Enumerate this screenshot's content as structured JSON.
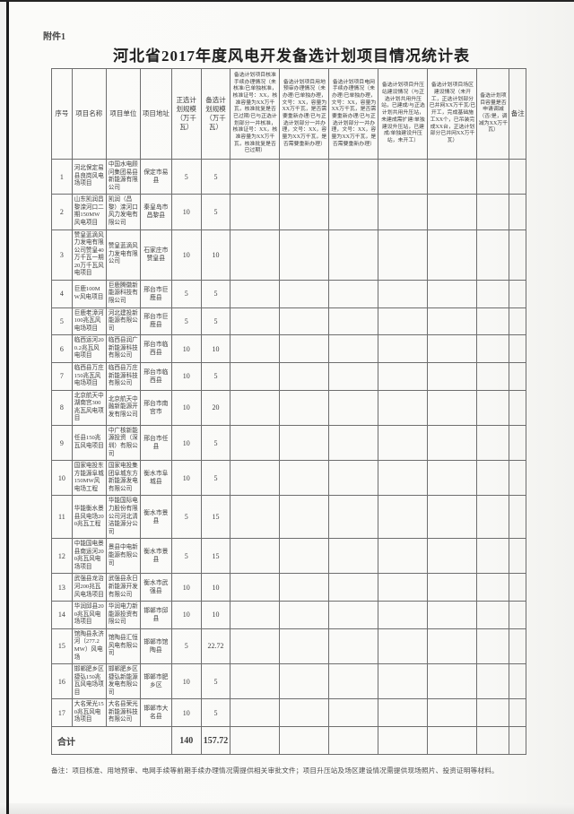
{
  "attachment": "附件1",
  "title": "河北省2017年度风电开发备选计划项目情况统计表",
  "note": "备注：项目核准、用地预审、电网手续等前期手续办理情况需提供相关审批文件；项目升压站及场区建设情况需提供现场照片、投资证明等材料。",
  "colors": {
    "page_bg": "#fafaf8",
    "border": "#6e6e6e",
    "text": "#3d3d3d",
    "scan_edge": "#1b1b1b"
  },
  "table": {
    "headers": [
      "序号",
      "项目名称",
      "项目单位",
      "项目地址",
      "正选计划规模（万千瓦）",
      "备选计划规模（万千瓦）",
      "备选计划项目核准手续办理情况（未核准/已单独核准，核准证号：XX，核准容量为XX万千瓦，核准批复是否已过期/已与正选计划部分一并核准，核准证号：XX，核准容量为XX万千瓦，核准批复是否已过期）",
      "备选计划项目用地预审办理情况（未办理/已单独办理，文号：XX，容量为XX万千瓦，是否需要重新办理/已与正选计划部分一并办理，文号：XX，容量为XX万千瓦，是否需要重新办理）",
      "备选计划项目电网手续办理情况（未办理/已单独办理，文号：XX，容量为XX万千瓦，是否需要重新办理/已与正选计划部分一并办理，文号：XX，容量为XX万千瓦，是否需要重新办理）",
      "备选计划项目升压站建设情况（与正选计划共用升压站，已建成/与正选计划共用升压站，未建成需扩建/单独建设升压站，已建成/单独建设升压站，未开工）",
      "备选计划项目场区建设情况（未开工，正选计划部分已并网XX万千瓦/已开工，完成基础施工XX个，已吊装完成XX台，正选计划部分已并网XX万千瓦）",
      "备选计划项目容量是否申请调减（否/是，调减为XX万千瓦）",
      "备注"
    ],
    "column_widths_pct": [
      4.3,
      7.2,
      7.2,
      6.6,
      6.2,
      6.2,
      10.4,
      10.4,
      10.4,
      10.4,
      10.4,
      6.8,
      3.5
    ],
    "empty_trailing_columns": 7,
    "rows": [
      {
        "seq": "1",
        "name": "河北保定易县良岗风电场项目",
        "unit": "中国水电顾问集团易县新能源有限公司",
        "address": "保定市易县",
        "plan": "5",
        "alt": "5"
      },
      {
        "seq": "2",
        "name": "山东凯润昌黎滦河口二期150MW风电项目",
        "unit": "凯润（昌黎）滦河口风力发电有限公司",
        "address": "秦皇岛市昌黎县",
        "plan": "10",
        "alt": "5"
      },
      {
        "seq": "3",
        "name": "赞皇蓝滴风力发电有限公司赞皇40万千瓦一期20万千瓦风电项目",
        "unit": "赞皇蓝滴风力发电有限公司",
        "address": "石家庄市赞皇县",
        "plan": "10",
        "alt": "10"
      },
      {
        "seq": "4",
        "name": "巨鹿100MW风电项目",
        "unit": "巨鹿腾徽新能源科技有限公司",
        "address": "邢台市巨鹿县",
        "plan": "5",
        "alt": "5"
      },
      {
        "seq": "5",
        "name": "巨鹿老漳河100兆瓦风电场项目",
        "unit": "河北建投新能源有限公司",
        "address": "邢台市巨鹿县",
        "plan": "5",
        "alt": "5"
      },
      {
        "seq": "6",
        "name": "临西运河200.2兆瓦风电项目",
        "unit": "临西县润广新能源科技有限公司",
        "address": "邢台市临西县",
        "plan": "10",
        "alt": "10"
      },
      {
        "seq": "7",
        "name": "临西县万庄150兆瓦风电场项目",
        "unit": "临西县万庄新能源科技有限公司",
        "address": "邢台市临西县",
        "plan": "10",
        "alt": "5"
      },
      {
        "seq": "8",
        "name": "北京航天中湖南宫300兆瓦风电项目",
        "unit": "北京航天中融新能源开发有限公司",
        "address": "邢台市南宫市",
        "plan": "10",
        "alt": "20"
      },
      {
        "seq": "9",
        "name": "任县150兆瓦风电项目",
        "unit": "中广核新能源投资（深圳）有限公司",
        "address": "邢台市任县",
        "plan": "10",
        "alt": "5"
      },
      {
        "seq": "10",
        "name": "国家电投东方能源阜城150MW风电场工程",
        "unit": "国家电投集团阜城东方新能源发电有限公司",
        "address": "衡水市阜城县",
        "plan": "10",
        "alt": "5"
      },
      {
        "seq": "11",
        "name": "华能衡水景县风电场200兆瓦工程",
        "unit": "华能国际电力股份有限公司河北清洁能源分公司",
        "address": "衡水市景县",
        "plan": "5",
        "alt": "15"
      },
      {
        "seq": "12",
        "name": "中能国电景县南运河200兆瓦风电场项目",
        "unit": "景县中电新能源有限公司",
        "address": "衡水市景县",
        "plan": "5",
        "alt": "15"
      },
      {
        "seq": "13",
        "name": "武强县龙治河200兆瓦风电场项目",
        "unit": "武强县永日新能源开发有限公司",
        "address": "衡水市武强县",
        "plan": "10",
        "alt": "10"
      },
      {
        "seq": "14",
        "name": "华润邱县200兆瓦风电场项目",
        "unit": "华润电力新能源投资有限公司",
        "address": "邯郸市邱县",
        "plan": "10",
        "alt": "10"
      },
      {
        "seq": "15",
        "name": "馆陶县永济河（277.2MW）风电场",
        "unit": "馆陶县汇恒风电有限公司",
        "address": "邯郸市馆陶县",
        "plan": "5",
        "alt": "22.72"
      },
      {
        "seq": "16",
        "name": "邯郸肥乡区捷弘150兆瓦风电场项目",
        "unit": "邯郸肥乡区捷弘新能源发电有限公司",
        "address": "邯郸市肥乡区",
        "plan": "10",
        "alt": "5"
      },
      {
        "seq": "17",
        "name": "大名荣光150兆瓦风电场项目",
        "unit": "大名县荣光新能源科技有限公司",
        "address": "邯郸市大名县",
        "plan": "10",
        "alt": "5"
      }
    ],
    "total": {
      "label": "合计",
      "plan": "140",
      "alt": "157.72"
    }
  }
}
